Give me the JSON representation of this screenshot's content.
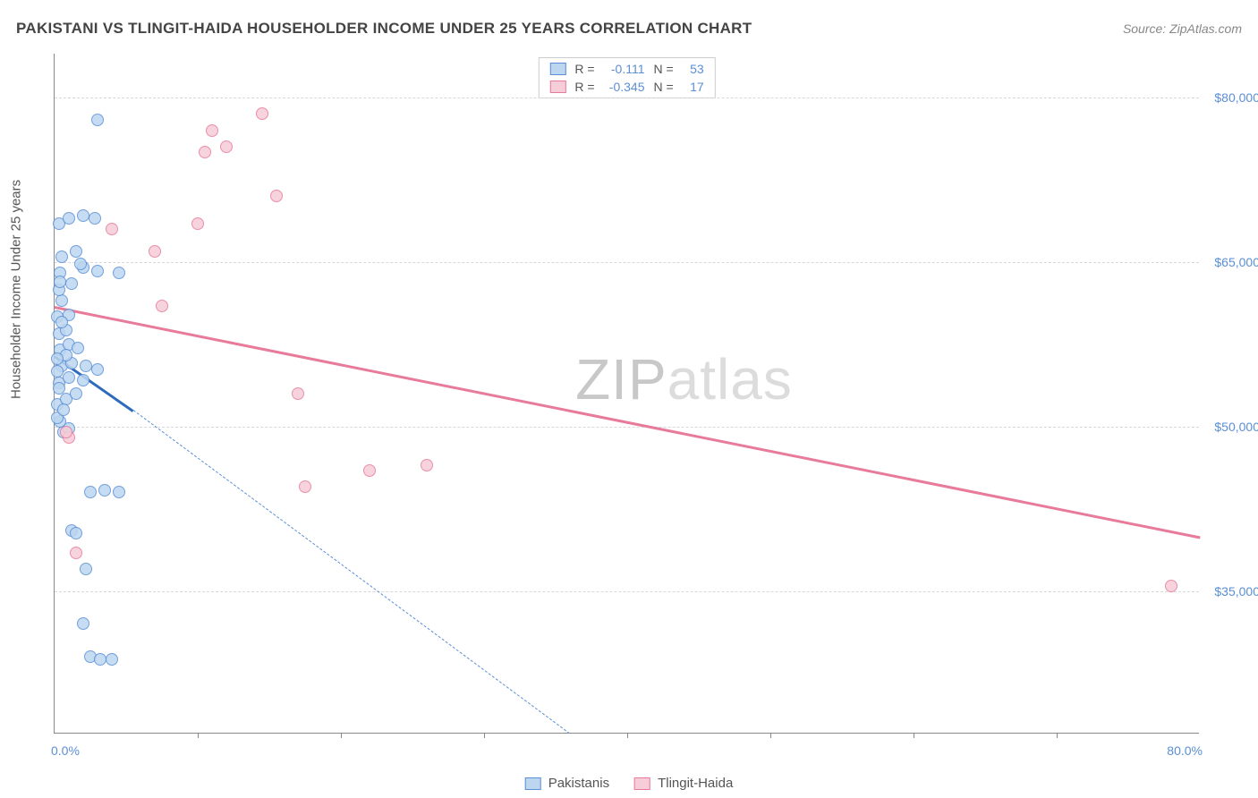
{
  "title": "PAKISTANI VS TLINGIT-HAIDA HOUSEHOLDER INCOME UNDER 25 YEARS CORRELATION CHART",
  "source": "Source: ZipAtlas.com",
  "watermark_bold": "ZIP",
  "watermark_light": "atlas",
  "y_axis": {
    "label": "Householder Income Under 25 years",
    "ticks": [
      35000,
      50000,
      65000,
      80000
    ],
    "tick_labels": [
      "$35,000",
      "$50,000",
      "$65,000",
      "$80,000"
    ],
    "min": 22000,
    "max": 84000,
    "label_color": "#5b8fd6",
    "label_fontsize": 14
  },
  "x_axis": {
    "min": 0,
    "max": 80,
    "left_label": "0.0%",
    "right_label": "80.0%",
    "tick_positions": [
      10,
      20,
      30,
      40,
      50,
      60,
      70
    ],
    "label_color": "#5b8fd6",
    "label_fontsize": 14
  },
  "series": [
    {
      "name": "Pakistanis",
      "fill_color": "#bcd6f0",
      "stroke_color": "#5b8fd6",
      "trend_color": "#2f6bbd",
      "point_radius": 7,
      "point_opacity": 0.85,
      "R": "-0.111",
      "N": "53",
      "trend": {
        "x1": 0,
        "y1": 56500,
        "x2": 5.5,
        "y2": 51500,
        "dash_to_x": 36,
        "dash_to_y": 22000
      },
      "points": [
        {
          "x": 0.6,
          "y": 49500
        },
        {
          "x": 1.0,
          "y": 49800
        },
        {
          "x": 0.4,
          "y": 50500
        },
        {
          "x": 0.2,
          "y": 52000
        },
        {
          "x": 0.8,
          "y": 52500
        },
        {
          "x": 1.5,
          "y": 53000
        },
        {
          "x": 0.3,
          "y": 54000
        },
        {
          "x": 1.0,
          "y": 54500
        },
        {
          "x": 2.0,
          "y": 54200
        },
        {
          "x": 0.5,
          "y": 55500
        },
        {
          "x": 1.2,
          "y": 55800
        },
        {
          "x": 2.2,
          "y": 55500
        },
        {
          "x": 3.0,
          "y": 55200
        },
        {
          "x": 0.4,
          "y": 57000
        },
        {
          "x": 1.0,
          "y": 57500
        },
        {
          "x": 1.6,
          "y": 57200
        },
        {
          "x": 0.3,
          "y": 58500
        },
        {
          "x": 0.8,
          "y": 58800
        },
        {
          "x": 0.2,
          "y": 60000
        },
        {
          "x": 1.0,
          "y": 60200
        },
        {
          "x": 0.5,
          "y": 61500
        },
        {
          "x": 0.3,
          "y": 62500
        },
        {
          "x": 1.2,
          "y": 63000
        },
        {
          "x": 0.4,
          "y": 64000
        },
        {
          "x": 2.0,
          "y": 64500
        },
        {
          "x": 3.0,
          "y": 64200
        },
        {
          "x": 4.5,
          "y": 64000
        },
        {
          "x": 0.5,
          "y": 65500
        },
        {
          "x": 1.5,
          "y": 66000
        },
        {
          "x": 0.3,
          "y": 68500
        },
        {
          "x": 1.0,
          "y": 69000
        },
        {
          "x": 2.0,
          "y": 69200
        },
        {
          "x": 2.8,
          "y": 69000
        },
        {
          "x": 3.0,
          "y": 78000
        },
        {
          "x": 2.5,
          "y": 44000
        },
        {
          "x": 3.5,
          "y": 44200
        },
        {
          "x": 4.5,
          "y": 44000
        },
        {
          "x": 1.2,
          "y": 40500
        },
        {
          "x": 1.5,
          "y": 40300
        },
        {
          "x": 2.2,
          "y": 37000
        },
        {
          "x": 2.0,
          "y": 32000
        },
        {
          "x": 2.5,
          "y": 29000
        },
        {
          "x": 3.2,
          "y": 28800
        },
        {
          "x": 4.0,
          "y": 28800
        },
        {
          "x": 0.2,
          "y": 50800
        },
        {
          "x": 0.6,
          "y": 51500
        },
        {
          "x": 0.3,
          "y": 53500
        },
        {
          "x": 0.8,
          "y": 56500
        },
        {
          "x": 0.2,
          "y": 55000
        },
        {
          "x": 0.5,
          "y": 59500
        },
        {
          "x": 0.2,
          "y": 56200
        },
        {
          "x": 0.4,
          "y": 63200
        },
        {
          "x": 1.8,
          "y": 64800
        }
      ]
    },
    {
      "name": "Tlingit-Haida",
      "fill_color": "#f6cdd8",
      "stroke_color": "#e87a9a",
      "trend_color": "#e87a9a",
      "point_radius": 7,
      "point_opacity": 0.85,
      "R": "-0.345",
      "N": "17",
      "trend": {
        "x1": 0,
        "y1": 61000,
        "x2": 80,
        "y2": 40000
      },
      "points": [
        {
          "x": 1.0,
          "y": 49000
        },
        {
          "x": 0.8,
          "y": 49500
        },
        {
          "x": 1.5,
          "y": 38500
        },
        {
          "x": 4.0,
          "y": 68000
        },
        {
          "x": 7.0,
          "y": 66000
        },
        {
          "x": 7.5,
          "y": 61000
        },
        {
          "x": 10.0,
          "y": 68500
        },
        {
          "x": 12.0,
          "y": 75500
        },
        {
          "x": 10.5,
          "y": 75000
        },
        {
          "x": 11.0,
          "y": 77000
        },
        {
          "x": 15.5,
          "y": 71000
        },
        {
          "x": 17.0,
          "y": 53000
        },
        {
          "x": 17.5,
          "y": 44500
        },
        {
          "x": 22.0,
          "y": 46000
        },
        {
          "x": 26.0,
          "y": 46500
        },
        {
          "x": 78.0,
          "y": 35500
        },
        {
          "x": 14.5,
          "y": 78500
        }
      ]
    }
  ],
  "stat_box": {
    "border_color": "#cccccc",
    "fontsize": 14
  },
  "legend": {
    "items": [
      "Pakistanis",
      "Tlingit-Haida"
    ]
  },
  "grid_color": "#d8d8d8",
  "axis_color": "#888888",
  "background_color": "#ffffff"
}
